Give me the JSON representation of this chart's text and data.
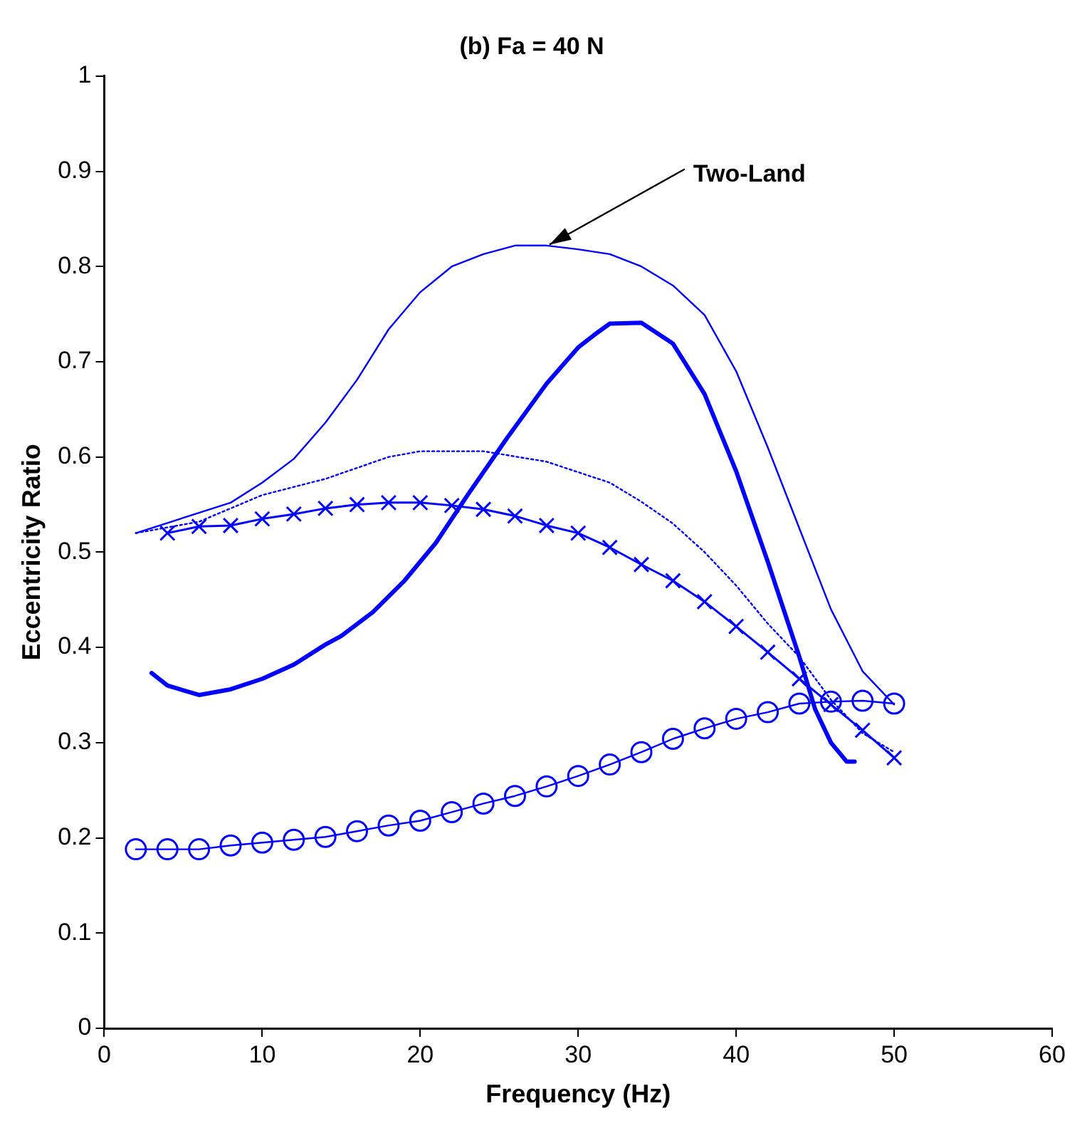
{
  "chart_data": {
    "type": "line",
    "title": "(b) Fa = 40 N",
    "xlabel": "Frequency (Hz)",
    "ylabel": "Eccentricity Ratio",
    "xlim": [
      0,
      60
    ],
    "xticks": [
      0,
      10,
      20,
      30,
      40,
      50,
      60
    ],
    "ylim": [
      0,
      1
    ],
    "yticks": [
      0,
      0.1,
      0.2,
      0.3,
      0.4,
      0.5,
      0.6,
      0.7,
      0.8,
      0.9,
      1
    ],
    "grid": false,
    "legend": false,
    "annotations": [
      {
        "text": "Two-Land",
        "x": 28,
        "y": 0.82
      }
    ],
    "series": [
      {
        "color": "#0000ff",
        "line_style": "solid",
        "marker": "none",
        "x": [
          2,
          8,
          10,
          12,
          14,
          16,
          18,
          20,
          22,
          24,
          26,
          28,
          30,
          32,
          34,
          36,
          38,
          40,
          42,
          44,
          46,
          48,
          50
        ],
        "values": [
          0.52,
          0.552,
          0.573,
          0.598,
          0.636,
          0.681,
          0.734,
          0.773,
          0.8,
          0.813,
          0.822,
          0.822,
          0.818,
          0.813,
          0.8,
          0.78,
          0.749,
          0.69,
          0.61,
          0.525,
          0.44,
          0.375,
          0.34
        ]
      },
      {
        "color": "#0000ff",
        "line_style": "solid",
        "marker": "none",
        "x": [
          3,
          4,
          6,
          8,
          10,
          12,
          14,
          15,
          17,
          19,
          21,
          23,
          25.5,
          28,
          30,
          31,
          32,
          34,
          36,
          38,
          40,
          42,
          44,
          45,
          46,
          47,
          47.5
        ],
        "values": [
          0.373,
          0.36,
          0.35,
          0.356,
          0.367,
          0.382,
          0.403,
          0.412,
          0.437,
          0.47,
          0.51,
          0.56,
          0.62,
          0.677,
          0.715,
          0.728,
          0.74,
          0.741,
          0.719,
          0.666,
          0.585,
          0.49,
          0.39,
          0.335,
          0.3,
          0.28,
          0.28
        ]
      },
      {
        "color": "#0000ff",
        "line_style": "dotted",
        "marker": "none",
        "x": [
          2,
          6,
          10,
          14,
          18,
          20,
          24,
          28,
          32,
          34,
          36,
          38,
          40,
          42,
          44,
          46,
          48,
          50
        ],
        "values": [
          0.52,
          0.532,
          0.56,
          0.577,
          0.6,
          0.606,
          0.606,
          0.595,
          0.573,
          0.553,
          0.53,
          0.5,
          0.465,
          0.425,
          0.39,
          0.345,
          0.31,
          0.29
        ]
      },
      {
        "color": "#0000ff",
        "line_style": "solid",
        "marker": "cross",
        "x": [
          4,
          6,
          8,
          10,
          12,
          14,
          16,
          18,
          20,
          22,
          24,
          26,
          28,
          30,
          32,
          34,
          36,
          38,
          40,
          42,
          44,
          46,
          48,
          50
        ],
        "values": [
          0.52,
          0.527,
          0.528,
          0.535,
          0.54,
          0.546,
          0.55,
          0.552,
          0.552,
          0.549,
          0.545,
          0.538,
          0.528,
          0.52,
          0.505,
          0.487,
          0.47,
          0.448,
          0.422,
          0.395,
          0.367,
          0.34,
          0.313,
          0.284
        ]
      },
      {
        "color": "#0000ff",
        "line_style": "solid",
        "marker": "circle",
        "x": [
          2,
          4,
          6,
          8,
          10,
          12,
          14,
          16,
          18,
          20,
          22,
          24,
          26,
          28,
          30,
          32,
          34,
          36,
          38,
          40,
          42,
          44,
          46,
          48,
          50
        ],
        "values": [
          0.188,
          0.188,
          0.188,
          0.192,
          0.195,
          0.198,
          0.201,
          0.207,
          0.213,
          0.218,
          0.227,
          0.236,
          0.244,
          0.254,
          0.265,
          0.277,
          0.29,
          0.304,
          0.315,
          0.325,
          0.332,
          0.341,
          0.343,
          0.344,
          0.341
        ]
      }
    ]
  }
}
